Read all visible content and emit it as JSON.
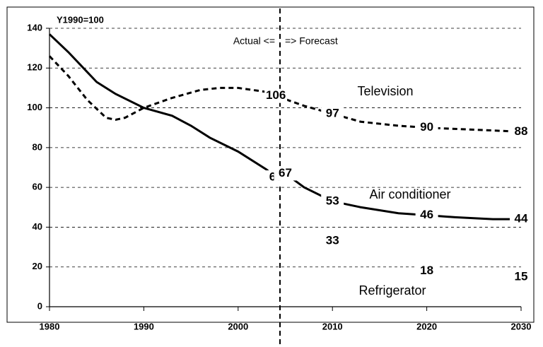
{
  "chart_data": {
    "type": "line",
    "y_unit_label": "Y1990=100",
    "annotations": [
      "Actual <=",
      "=> Forecast"
    ],
    "xlim": [
      1980,
      2030
    ],
    "xticks": [
      1980,
      1990,
      2000,
      2010,
      2020,
      2030
    ],
    "ylim": [
      0,
      140
    ],
    "yticks": [
      0,
      20,
      40,
      60,
      80,
      100,
      120,
      140
    ],
    "grid": true,
    "series": [
      {
        "name": "Television",
        "color": "#000000",
        "dash": true,
        "x": [
          1980,
          1982,
          1984,
          1986,
          1987,
          1988,
          1990,
          1993,
          1996,
          1998,
          2000,
          2003,
          2004,
          2007,
          2010,
          2013,
          2017,
          2020,
          2025,
          2030
        ],
        "values": [
          126,
          116,
          104,
          95,
          94,
          95,
          100,
          105,
          109,
          110,
          110,
          108,
          106,
          101,
          97,
          93,
          91,
          90,
          89,
          88
        ],
        "value_labels": [
          null,
          null,
          null,
          null,
          null,
          null,
          null,
          null,
          null,
          null,
          null,
          null,
          "106",
          null,
          "97",
          null,
          null,
          "90",
          null,
          "88"
        ]
      },
      {
        "name": "Air conditioner",
        "color": "#000000",
        "dash": false,
        "x": [
          1980,
          1982,
          1984,
          1985,
          1987,
          1990,
          1993,
          1995,
          1997,
          2000,
          2003,
          2004,
          2005,
          2007,
          2010,
          2013,
          2017,
          2020,
          2023,
          2027,
          2030
        ],
        "values": [
          137,
          128,
          118,
          113,
          107,
          100,
          96,
          91,
          85,
          78,
          69,
          65,
          67,
          60,
          53,
          50,
          47,
          46,
          45,
          44,
          44
        ],
        "value_labels": [
          null,
          null,
          null,
          null,
          null,
          null,
          null,
          null,
          null,
          null,
          null,
          "65",
          "67",
          null,
          "53",
          null,
          null,
          "46",
          null,
          null,
          "44"
        ]
      },
      {
        "name": "Refrigerator",
        "color": "none",
        "dash": false,
        "x": [
          2010,
          2020,
          2030
        ],
        "values": [
          33,
          18,
          15
        ],
        "value_labels": [
          "33",
          "18",
          "15"
        ]
      }
    ]
  }
}
